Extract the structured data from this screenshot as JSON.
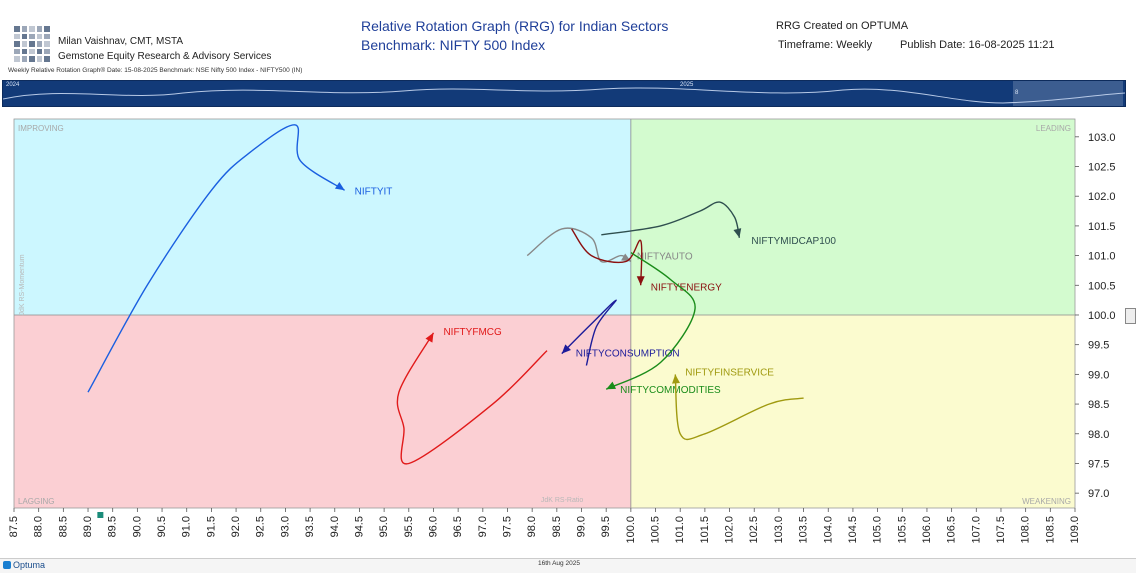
{
  "header": {
    "author_name": "Milan Vaishnav, CMT, MSTA",
    "company": "Gemstone Equity Research & Advisory Services",
    "title_line1": "Relative Rotation Graph (RRG) for Indian Sectors",
    "title_line2": "Benchmark: NIFTY 500 Index",
    "created_on": "RRG Created on OPTUMA",
    "timeframe": "Timeframe: Weekly",
    "publish_date": "Publish Date: 16-08-2025 11:21",
    "subline": "Weekly Relative Rotation Graph®   Date: 15-08-2025  Benchmark: NSE Nifty 500 Index - NIFTY500 (IN)"
  },
  "timeline": {
    "years": [
      "2024",
      "2025"
    ],
    "marker": "8"
  },
  "footer": {
    "brand": "Optuma",
    "date": "16th Aug 2025"
  },
  "colors": {
    "improving": "#ccf7ff",
    "leading": "#d3fbcf",
    "lagging": "#fbcfd3",
    "weakening": "#fbfbcf"
  },
  "chart_data": {
    "type": "scatter",
    "title": "Relative Rotation Graph (RRG) for Indian Sectors",
    "xlabel": "JdK RS-Ratio",
    "ylabel": "JdK RS-Momentum",
    "xlim": [
      87.5,
      109.0
    ],
    "ylim": [
      96.75,
      103.3
    ],
    "x_ticks": [
      "87.5",
      "88.0",
      "88.5",
      "89.0",
      "89.5",
      "90.0",
      "90.5",
      "91.0",
      "91.5",
      "92.0",
      "92.5",
      "93.0",
      "93.5",
      "94.0",
      "94.5",
      "95.0",
      "95.5",
      "96.0",
      "96.5",
      "97.0",
      "97.5",
      "98.0",
      "98.5",
      "99.0",
      "99.5",
      "100.0",
      "100.5",
      "101.0",
      "101.5",
      "102.0",
      "102.5",
      "103.0",
      "103.5",
      "104.0",
      "104.5",
      "105.0",
      "105.5",
      "106.0",
      "106.5",
      "107.0",
      "107.5",
      "108.0",
      "108.5",
      "109.0"
    ],
    "y_ticks": [
      "97.0",
      "97.5",
      "98.0",
      "98.5",
      "99.0",
      "99.5",
      "100.0",
      "100.5",
      "101.0",
      "101.5",
      "102.0",
      "102.5",
      "103.0"
    ],
    "quadrants": [
      "IMPROVING",
      "LEADING",
      "LAGGING",
      "WEAKENING"
    ],
    "grid": false,
    "series": [
      {
        "name": "NIFTYIT",
        "color": "#1a5fe0",
        "points": [
          [
            89.0,
            98.7
          ],
          [
            90.2,
            100.5
          ],
          [
            91.5,
            102.1
          ],
          [
            92.3,
            102.75
          ],
          [
            93.2,
            103.2
          ],
          [
            93.3,
            102.6
          ],
          [
            94.2,
            102.1
          ]
        ]
      },
      {
        "name": "NIFTYMIDCAP100",
        "color": "#2f4f4f",
        "points": [
          [
            99.4,
            101.35
          ],
          [
            100.6,
            101.5
          ],
          [
            101.4,
            101.75
          ],
          [
            101.8,
            101.9
          ],
          [
            102.1,
            101.65
          ],
          [
            102.2,
            101.3
          ]
        ]
      },
      {
        "name": "NIFTYAUTO",
        "color": "#888888",
        "points": [
          [
            97.9,
            101.0
          ],
          [
            98.6,
            101.45
          ],
          [
            99.2,
            101.3
          ],
          [
            99.4,
            100.9
          ],
          [
            99.8,
            101.0
          ],
          [
            100.0,
            100.9
          ]
        ]
      },
      {
        "name": "NIFTYENERGY",
        "color": "#8b1010",
        "points": [
          [
            98.8,
            101.45
          ],
          [
            99.2,
            101.0
          ],
          [
            99.9,
            100.9
          ],
          [
            100.2,
            101.25
          ],
          [
            100.2,
            100.5
          ]
        ]
      },
      {
        "name": "NIFTYFMCG",
        "color": "#e11a1a",
        "points": [
          [
            98.3,
            99.4
          ],
          [
            97.2,
            98.5
          ],
          [
            95.5,
            97.5
          ],
          [
            95.4,
            98.1
          ],
          [
            95.3,
            98.7
          ],
          [
            96.0,
            99.7
          ]
        ]
      },
      {
        "name": "NIFTYCONSUMPTION",
        "color": "#1c1c9a",
        "points": [
          [
            99.1,
            99.15
          ],
          [
            99.3,
            99.8
          ],
          [
            99.7,
            100.25
          ],
          [
            99.2,
            99.85
          ],
          [
            98.6,
            99.35
          ]
        ]
      },
      {
        "name": "NIFTYCOMMODITIES",
        "color": "#1a8c1a",
        "points": [
          [
            100.0,
            101.05
          ],
          [
            100.8,
            100.6
          ],
          [
            101.3,
            100.1
          ],
          [
            100.6,
            99.2
          ],
          [
            99.5,
            98.75
          ]
        ]
      },
      {
        "name": "NIFTYFINSERVICE",
        "color": "#a09a10",
        "points": [
          [
            103.5,
            98.6
          ],
          [
            102.8,
            98.5
          ],
          [
            101.5,
            98.0
          ],
          [
            101.0,
            98.0
          ],
          [
            100.9,
            99.0
          ]
        ]
      }
    ]
  }
}
